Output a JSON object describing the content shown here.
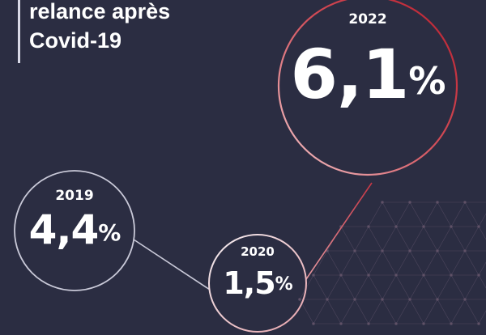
{
  "title": {
    "line1": "relance après",
    "line2": "Covid-19"
  },
  "colors": {
    "background": "#2b2d42",
    "accent_red": "#c0313c",
    "circle_light": "#c9c9d8"
  },
  "points": [
    {
      "year": "2019",
      "number": "4,4",
      "unit": "%"
    },
    {
      "year": "2020",
      "number": "1,5",
      "unit": "%"
    },
    {
      "year": "2022",
      "number": "6,1",
      "unit": "%"
    }
  ]
}
